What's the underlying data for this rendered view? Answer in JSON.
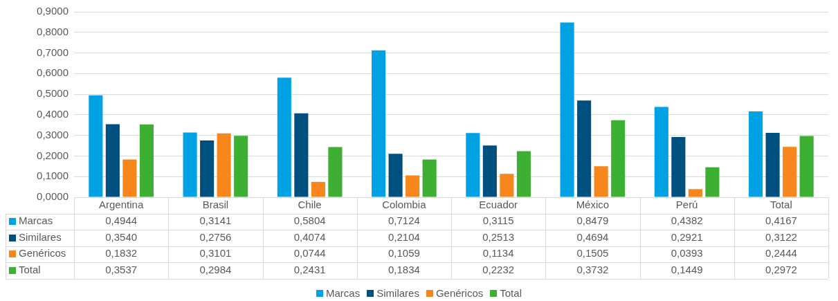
{
  "chart_data": {
    "type": "bar",
    "categories": [
      "Argentina",
      "Brasil",
      "Chile",
      "Colombia",
      "Ecuador",
      "México",
      "Perú",
      "Total"
    ],
    "series": [
      {
        "name": "Marcas",
        "color": "#00a2e3",
        "values": [
          0.4944,
          0.3141,
          0.5804,
          0.7124,
          0.3115,
          0.8479,
          0.4382,
          0.4167
        ],
        "value_labels": [
          "0,4944",
          "0,3141",
          "0,5804",
          "0,7124",
          "0,3115",
          "0,8479",
          "0,4382",
          "0,4167"
        ]
      },
      {
        "name": "Similares",
        "color": "#00507f",
        "values": [
          0.354,
          0.2756,
          0.4074,
          0.2104,
          0.2513,
          0.4694,
          0.2921,
          0.3122
        ],
        "value_labels": [
          "0,3540",
          "0,2756",
          "0,4074",
          "0,2104",
          "0,2513",
          "0,4694",
          "0,2921",
          "0,3122"
        ]
      },
      {
        "name": "Genéricos",
        "color": "#f7861c",
        "values": [
          0.1832,
          0.3101,
          0.0744,
          0.1059,
          0.1134,
          0.1505,
          0.0393,
          0.2444
        ],
        "value_labels": [
          "0,1832",
          "0,3101",
          "0,0744",
          "0,1059",
          "0,1134",
          "0,1505",
          "0,0393",
          "0,2444"
        ]
      },
      {
        "name": "Total",
        "color": "#3db034",
        "values": [
          0.3537,
          0.2984,
          0.2431,
          0.1834,
          0.2232,
          0.3732,
          0.1449,
          0.2972
        ],
        "value_labels": [
          "0,3537",
          "0,2984",
          "0,2431",
          "0,1834",
          "0,2232",
          "0,3732",
          "0,1449",
          "0,2972"
        ]
      }
    ],
    "ylim": [
      0,
      0.9
    ],
    "yticks": [
      {
        "value": 0,
        "label": "0,0000"
      },
      {
        "value": 0.1,
        "label": "0,1000"
      },
      {
        "value": 0.2,
        "label": "0,2000"
      },
      {
        "value": 0.3,
        "label": "0,3000"
      },
      {
        "value": 0.4,
        "label": "0,4000"
      },
      {
        "value": 0.5,
        "label": "0,5000"
      },
      {
        "value": 0.6,
        "label": "0,6000"
      },
      {
        "value": 0.7,
        "label": "0,7000"
      },
      {
        "value": 0.8,
        "label": "0,8000"
      },
      {
        "value": 0.9,
        "label": "0,9000"
      }
    ],
    "grid": "y",
    "legend": "bottom"
  }
}
